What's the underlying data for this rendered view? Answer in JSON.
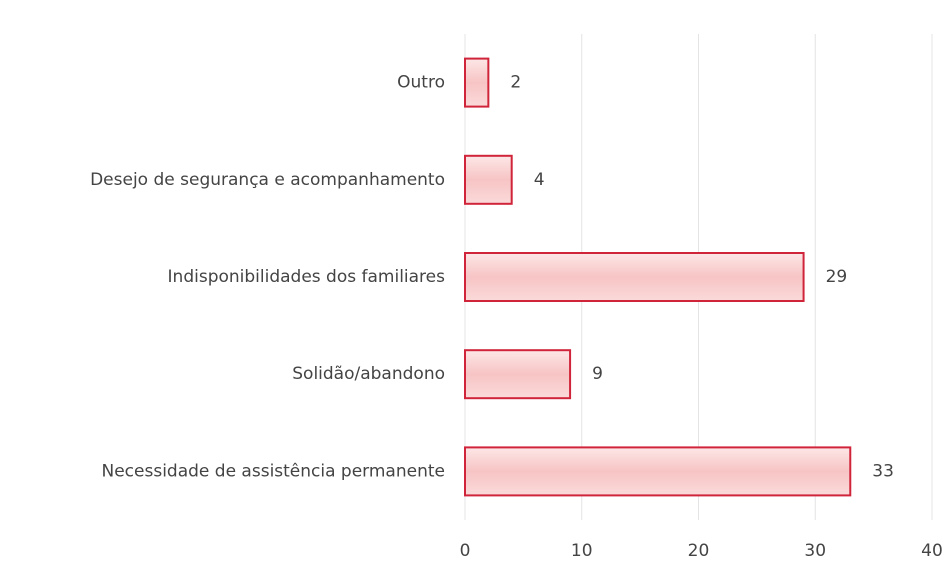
{
  "chart_data": {
    "type": "hbar",
    "categories": [
      "Outro",
      "Desejo de segurança e acompanhamento",
      "Indisponibilidades dos familiares",
      "Solidão/abandono",
      "Necessidade de assistência permanente"
    ],
    "values": [
      2,
      4,
      29,
      9,
      33
    ],
    "color": "#f7c6c6",
    "edge_color": "#d0243a",
    "xlim": [
      0,
      40
    ],
    "xticks": [
      0,
      10,
      20,
      30,
      40
    ],
    "grid": true
  }
}
